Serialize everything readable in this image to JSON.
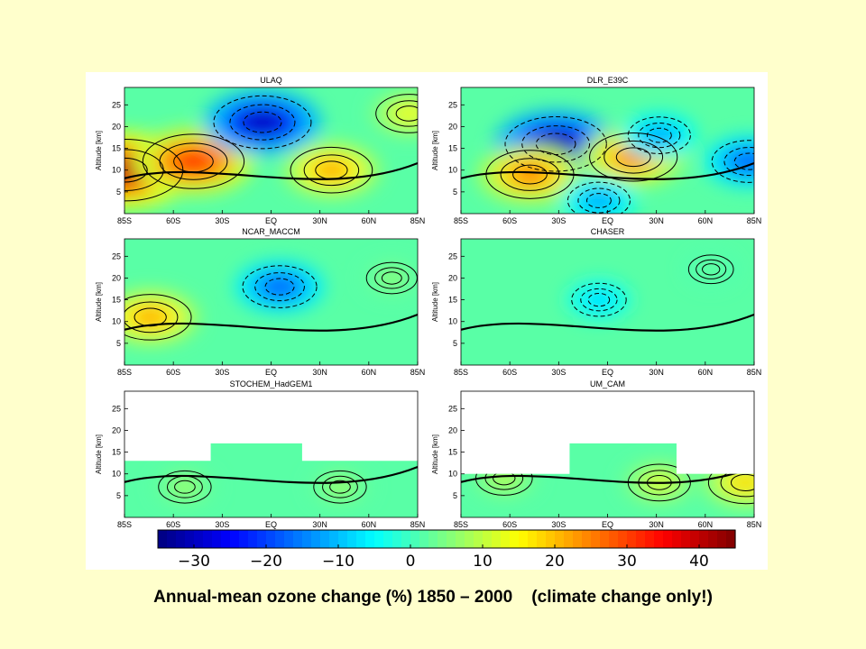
{
  "caption": {
    "main": "Annual-mean ozone change (%) 1850 – 2000",
    "note": "(climate change only!)"
  },
  "chart_data": {
    "type": "heatmap",
    "panels": [
      {
        "title": "ULAQ",
        "ylabel": "Altitude [km]",
        "xticks": [
          "85S",
          "60S",
          "30S",
          "EQ",
          "30N",
          "60N",
          "85N"
        ],
        "yticks": [
          5,
          10,
          15,
          20,
          25
        ],
        "ylim": [
          0,
          29
        ],
        "blobs": [
          {
            "lat": -85,
            "alt": 10,
            "value": 40
          },
          {
            "lat": -45,
            "alt": 12,
            "value": 32
          },
          {
            "lat": -5,
            "alt": 21,
            "value": -30
          },
          {
            "lat": 35,
            "alt": 10,
            "value": 22
          },
          {
            "lat": 80,
            "alt": 23,
            "value": 14
          }
        ]
      },
      {
        "title": "DLR_E39C",
        "ylabel": "Altitude [km]",
        "xticks": [
          "85S",
          "60S",
          "30S",
          "EQ",
          "30N",
          "60N",
          "85N"
        ],
        "yticks": [
          5,
          10,
          15,
          20,
          25
        ],
        "ylim": [
          0,
          29
        ],
        "blobs": [
          {
            "lat": -30,
            "alt": 16,
            "value": -32
          },
          {
            "lat": -45,
            "alt": 9,
            "value": 25
          },
          {
            "lat": 15,
            "alt": 13,
            "value": 25
          },
          {
            "lat": 30,
            "alt": 18,
            "value": -12
          },
          {
            "lat": 82,
            "alt": 12,
            "value": -18
          },
          {
            "lat": -5,
            "alt": 3,
            "value": -12
          }
        ]
      },
      {
        "title": "NCAR_MACCM",
        "ylabel": "Altitude [km]",
        "xticks": [
          "85S",
          "60S",
          "30S",
          "EQ",
          "30N",
          "60N",
          "85N"
        ],
        "yticks": [
          5,
          10,
          15,
          20,
          25
        ],
        "ylim": [
          0,
          29
        ],
        "blobs": [
          {
            "lat": -70,
            "alt": 11,
            "value": 22
          },
          {
            "lat": 5,
            "alt": 18,
            "value": -18
          },
          {
            "lat": 70,
            "alt": 20,
            "value": 6
          }
        ]
      },
      {
        "title": "CHASER",
        "ylabel": "Altitude [km]",
        "xticks": [
          "85S",
          "60S",
          "30S",
          "EQ",
          "30N",
          "60N",
          "85N"
        ],
        "yticks": [
          5,
          10,
          15,
          20,
          25
        ],
        "ylim": [
          0,
          29
        ],
        "blobs": [
          {
            "lat": -5,
            "alt": 15,
            "value": -8
          },
          {
            "lat": 60,
            "alt": 22,
            "value": 3
          }
        ]
      },
      {
        "title": "STOCHEM_HadGEM1",
        "ylabel": "Altitude [km]",
        "xticks": [
          "85S",
          "60S",
          "30S",
          "EQ",
          "30N",
          "60N",
          "85N"
        ],
        "yticks": [
          5,
          10,
          15,
          20,
          25
        ],
        "ylim": [
          0,
          29
        ],
        "blobs": [
          {
            "lat": -50,
            "alt": 7,
            "value": 7
          },
          {
            "lat": 40,
            "alt": 7,
            "value": 7
          }
        ]
      },
      {
        "title": "UM_CAM",
        "ylabel": "Altitude [km]",
        "xticks": [
          "85S",
          "60S",
          "30S",
          "EQ",
          "30N",
          "60N",
          "85N"
        ],
        "yticks": [
          5,
          10,
          15,
          20,
          25
        ],
        "ylim": [
          0,
          29
        ],
        "blobs": [
          {
            "lat": -60,
            "alt": 9,
            "value": 9
          },
          {
            "lat": 30,
            "alt": 8,
            "value": 12
          },
          {
            "lat": 80,
            "alt": 8,
            "value": 18
          }
        ]
      }
    ],
    "colorbar": {
      "range": [
        -35,
        45
      ],
      "ticks": [
        "−30",
        "−20",
        "−10",
        "0",
        "10",
        "20",
        "30",
        "40"
      ],
      "tick_values": [
        -30,
        -20,
        -10,
        0,
        10,
        20,
        30,
        40
      ]
    },
    "colormap": "jet"
  }
}
